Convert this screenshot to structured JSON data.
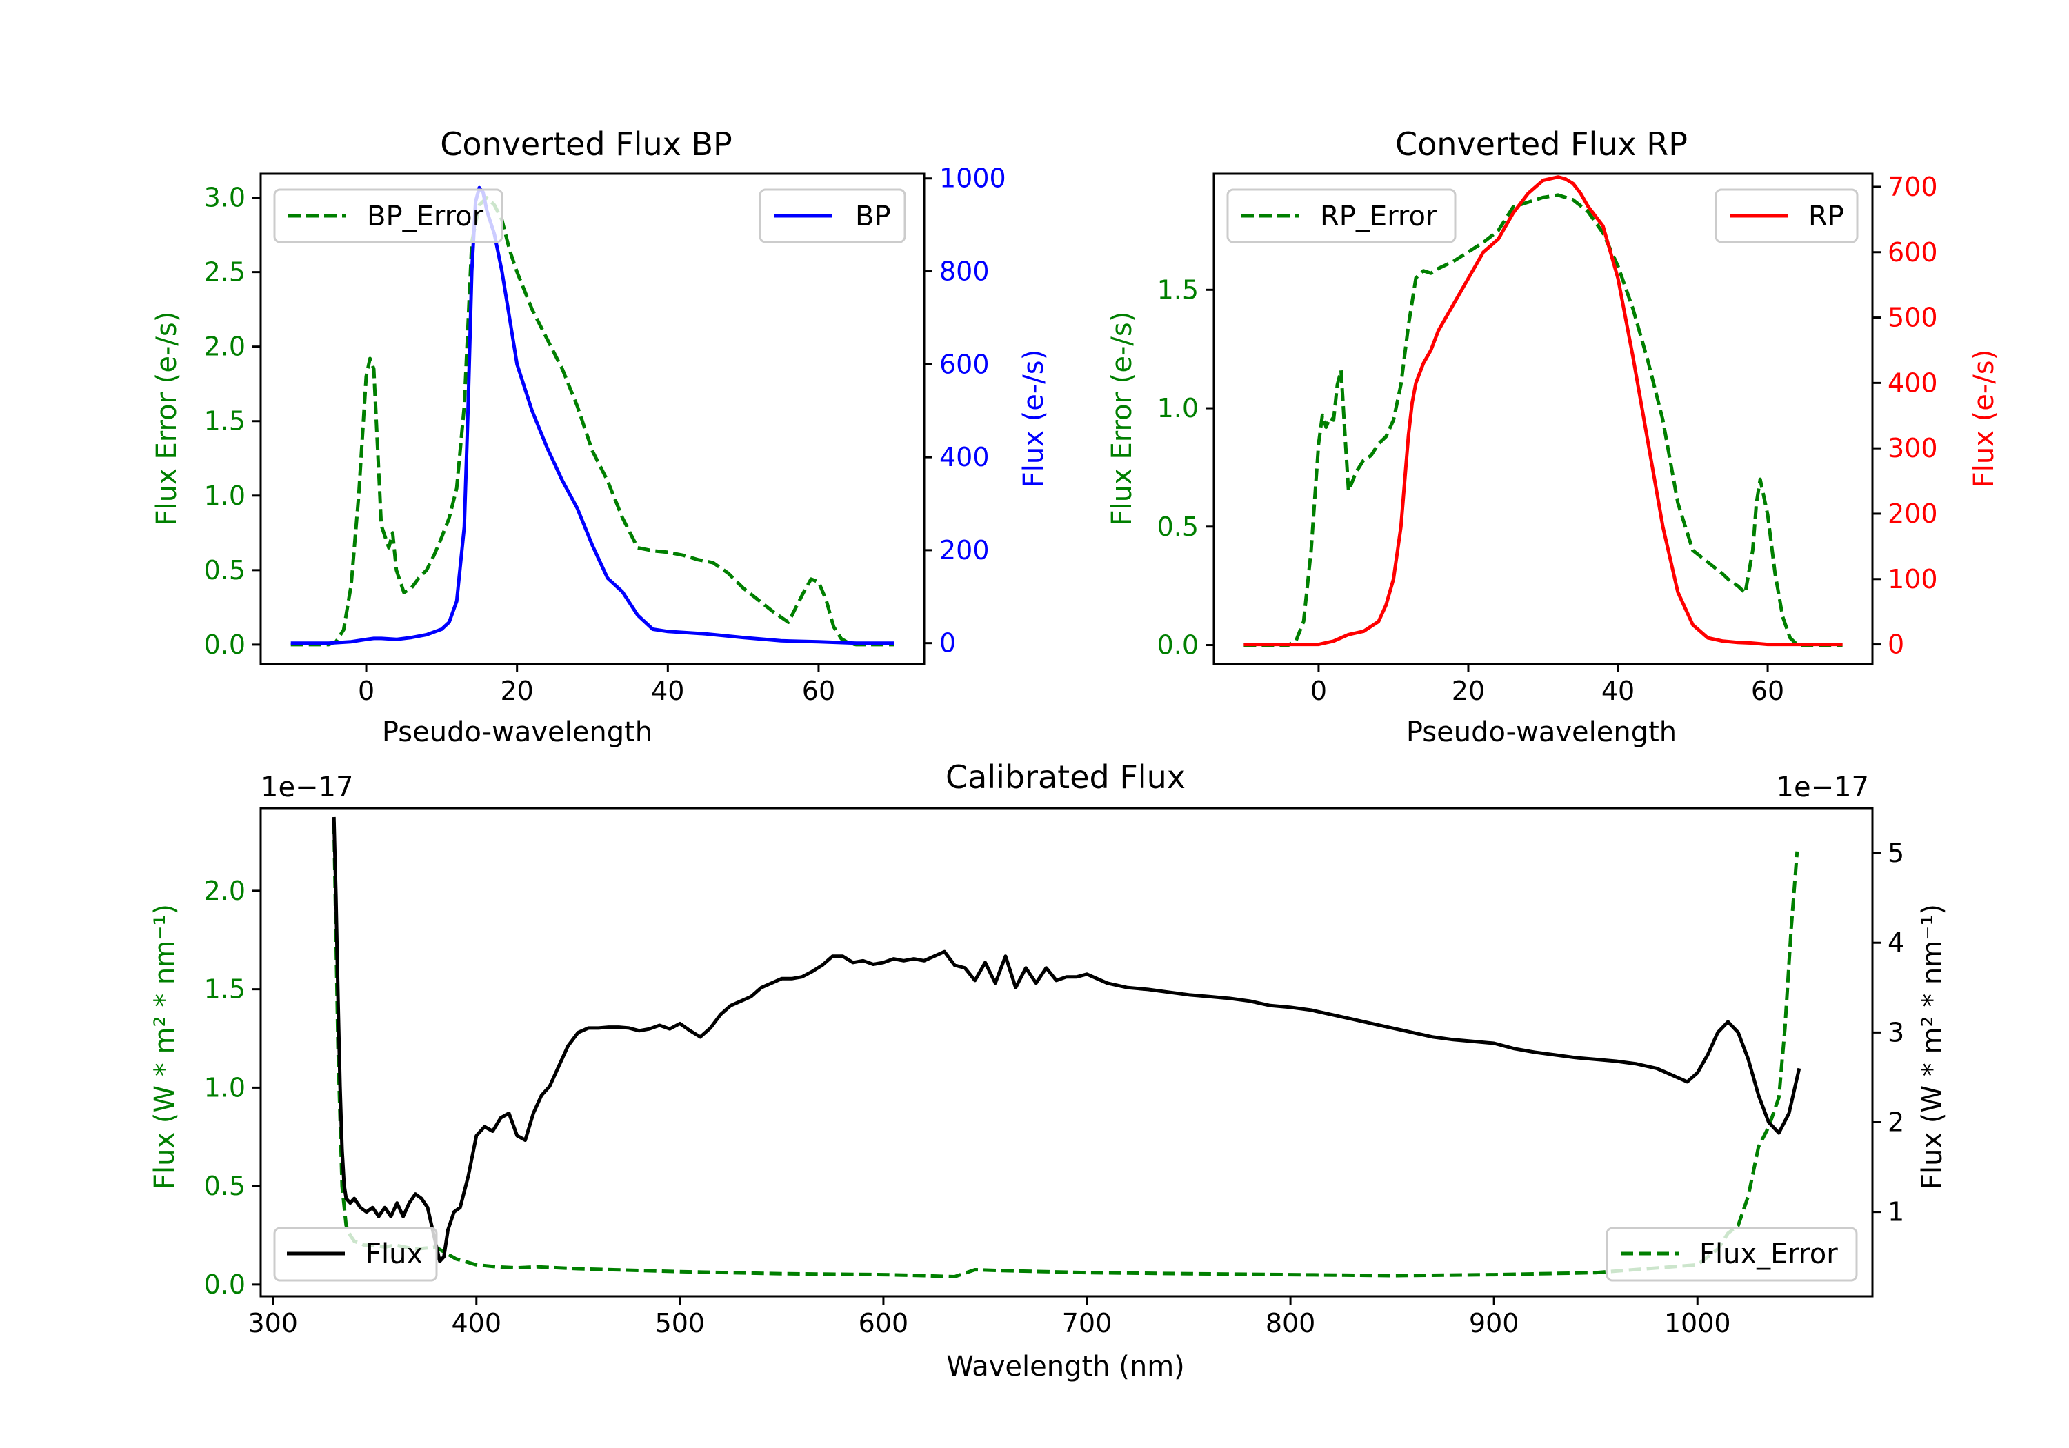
{
  "colors": {
    "error": "#007f00",
    "bp": "#0000ff",
    "rp": "#ff0000",
    "flux": "#000000",
    "axis": "#000000"
  },
  "chart_data": [
    {
      "id": "bp",
      "type": "line",
      "title": "Converted Flux BP",
      "xlabel": "Pseudo-wavelength",
      "ylabel_left": "Flux Error (e-/s)",
      "ylabel_right": "Flux (e-/s)",
      "xlim": [
        -14,
        74
      ],
      "ylim_left": [
        -0.13,
        3.16
      ],
      "ylim_right": [
        -45,
        1010
      ],
      "xticks": [
        0,
        20,
        40,
        60
      ],
      "xtick_labels": [
        "0",
        "20",
        "40",
        "60"
      ],
      "yticks_left": [
        0.0,
        0.5,
        1.0,
        1.5,
        2.0,
        2.5,
        3.0
      ],
      "yticks_left_labels": [
        "0.0",
        "0.5",
        "1.0",
        "1.5",
        "2.0",
        "2.5",
        "3.0"
      ],
      "yticks_right": [
        0,
        200,
        400,
        600,
        800,
        1000
      ],
      "yticks_right_labels": [
        "0",
        "200",
        "400",
        "600",
        "800",
        "1000"
      ],
      "legend_left": "BP_Error",
      "legend_right": "BP",
      "series": [
        {
          "name": "BP_Error",
          "axis": "left",
          "style": "dashed",
          "color_key": "error",
          "x": [
            -10,
            -5,
            -4,
            -3,
            -2,
            -1,
            0,
            0.5,
            1,
            2,
            3,
            3.5,
            4,
            5,
            6,
            7,
            8,
            9,
            10,
            11,
            12,
            13,
            14,
            15,
            16,
            17,
            18,
            19,
            20,
            22,
            24,
            26,
            28,
            30,
            32,
            34,
            36,
            38,
            40,
            42,
            44,
            46,
            48,
            50,
            52,
            54,
            56,
            58,
            59,
            60,
            61,
            62,
            63,
            64,
            65,
            66,
            70
          ],
          "y": [
            0.0,
            0.0,
            0.02,
            0.1,
            0.4,
            1.0,
            1.8,
            1.92,
            1.85,
            0.8,
            0.65,
            0.75,
            0.5,
            0.35,
            0.38,
            0.45,
            0.5,
            0.6,
            0.72,
            0.85,
            1.05,
            1.6,
            2.7,
            2.95,
            3.0,
            2.95,
            2.85,
            2.65,
            2.5,
            2.25,
            2.05,
            1.85,
            1.6,
            1.3,
            1.1,
            0.85,
            0.65,
            0.63,
            0.62,
            0.6,
            0.57,
            0.55,
            0.48,
            0.38,
            0.3,
            0.22,
            0.15,
            0.35,
            0.44,
            0.42,
            0.3,
            0.12,
            0.04,
            0.01,
            0.0,
            0.0,
            0.0
          ]
        },
        {
          "name": "BP",
          "axis": "right",
          "style": "solid",
          "color_key": "bp",
          "x": [
            -10,
            -5,
            -2,
            0,
            1,
            2,
            4,
            6,
            8,
            10,
            11,
            12,
            13,
            13.5,
            14,
            14.5,
            15,
            15.5,
            16,
            17,
            18,
            19,
            20,
            22,
            24,
            26,
            28,
            30,
            32,
            34,
            36,
            38,
            40,
            45,
            50,
            55,
            60,
            65,
            70
          ],
          "y": [
            0,
            0,
            3,
            8,
            10,
            10,
            8,
            12,
            18,
            30,
            45,
            90,
            250,
            500,
            800,
            950,
            980,
            970,
            930,
            880,
            800,
            700,
            600,
            500,
            420,
            350,
            290,
            210,
            140,
            110,
            60,
            30,
            25,
            20,
            12,
            5,
            3,
            0,
            0
          ]
        }
      ]
    },
    {
      "id": "rp",
      "type": "line",
      "title": "Converted Flux RP",
      "xlabel": "Pseudo-wavelength",
      "ylabel_left": "Flux Error (e-/s)",
      "ylabel_right": "Flux (e-/s)",
      "xlim": [
        -14,
        74
      ],
      "ylim_left": [
        -0.08,
        1.99
      ],
      "ylim_right": [
        -30,
        720
      ],
      "xticks": [
        0,
        20,
        40,
        60
      ],
      "xtick_labels": [
        "0",
        "20",
        "40",
        "60"
      ],
      "yticks_left": [
        0.0,
        0.5,
        1.0,
        1.5
      ],
      "yticks_left_labels": [
        "0.0",
        "0.5",
        "1.0",
        "1.5"
      ],
      "yticks_right": [
        0,
        100,
        200,
        300,
        400,
        500,
        600,
        700
      ],
      "yticks_right_labels": [
        "0",
        "100",
        "200",
        "300",
        "400",
        "500",
        "600",
        "700"
      ],
      "legend_left": "RP_Error",
      "legend_right": "RP",
      "series": [
        {
          "name": "RP_Error",
          "axis": "left",
          "style": "dashed",
          "color_key": "error",
          "x": [
            -10,
            -4,
            -3,
            -2,
            -1,
            0,
            0.5,
            1,
            1.5,
            2,
            2.5,
            3,
            3.5,
            4,
            5,
            6,
            7,
            8,
            9,
            10,
            11,
            12,
            13,
            14,
            15,
            16,
            18,
            20,
            22,
            24,
            26,
            28,
            30,
            32,
            34,
            36,
            38,
            40,
            42,
            44,
            46,
            48,
            50,
            52,
            54,
            55,
            56,
            57,
            58,
            58.5,
            59,
            60,
            61,
            62,
            63,
            64,
            70
          ],
          "y": [
            0.0,
            0.0,
            0.02,
            0.1,
            0.4,
            0.85,
            0.97,
            0.92,
            0.96,
            0.95,
            1.1,
            1.16,
            0.9,
            0.65,
            0.73,
            0.78,
            0.8,
            0.85,
            0.88,
            0.95,
            1.1,
            1.35,
            1.55,
            1.58,
            1.57,
            1.59,
            1.62,
            1.66,
            1.7,
            1.75,
            1.85,
            1.87,
            1.89,
            1.9,
            1.88,
            1.83,
            1.74,
            1.6,
            1.42,
            1.2,
            0.95,
            0.6,
            0.4,
            0.35,
            0.3,
            0.27,
            0.25,
            0.22,
            0.4,
            0.6,
            0.7,
            0.55,
            0.3,
            0.12,
            0.03,
            0.0,
            0.0
          ]
        },
        {
          "name": "RP",
          "axis": "right",
          "style": "solid",
          "color_key": "rp",
          "x": [
            -10,
            -5,
            -2,
            0,
            2,
            4,
            6,
            8,
            9,
            10,
            11,
            12,
            12.5,
            13,
            14,
            15,
            16,
            17,
            18,
            20,
            22,
            24,
            26,
            28,
            30,
            32,
            33,
            34,
            35,
            36,
            38,
            40,
            42,
            44,
            46,
            48,
            50,
            52,
            54,
            56,
            58,
            60,
            62,
            65,
            70
          ],
          "y": [
            0,
            0,
            0,
            0,
            5,
            15,
            20,
            35,
            60,
            100,
            180,
            320,
            370,
            400,
            430,
            450,
            480,
            500,
            520,
            560,
            600,
            620,
            660,
            690,
            710,
            715,
            712,
            705,
            690,
            670,
            640,
            560,
            440,
            310,
            180,
            80,
            30,
            10,
            5,
            3,
            2,
            0,
            0,
            0,
            0
          ]
        }
      ]
    },
    {
      "id": "cal",
      "type": "line",
      "title": "Calibrated Flux",
      "xlabel": "Wavelength (nm)",
      "ylabel_left": "Flux (W * m² * nm⁻¹)",
      "ylabel_right": "Flux (W * m² * nm⁻¹)",
      "offset_left": "1e−17",
      "offset_right": "1e−17",
      "xlim": [
        294,
        1086
      ],
      "ylim_left": [
        -0.06,
        2.42
      ],
      "ylim_right": [
        0.06,
        5.5
      ],
      "xticks": [
        300,
        400,
        500,
        600,
        700,
        800,
        900,
        1000
      ],
      "xtick_labels": [
        "300",
        "400",
        "500",
        "600",
        "700",
        "800",
        "900",
        "1000"
      ],
      "yticks_left": [
        0.0,
        0.5,
        1.0,
        1.5,
        2.0
      ],
      "yticks_left_labels": [
        "0.0",
        "0.5",
        "1.0",
        "1.5",
        "2.0"
      ],
      "yticks_right": [
        1,
        2,
        3,
        4,
        5
      ],
      "yticks_right_labels": [
        "1",
        "2",
        "3",
        "4",
        "5"
      ],
      "legend_left": "Flux",
      "legend_right": "Flux_Error",
      "series": [
        {
          "name": "Flux_Error",
          "axis": "left",
          "style": "dashed",
          "color_key": "error",
          "x": [
            330,
            332,
            334,
            336,
            338,
            340,
            345,
            350,
            355,
            360,
            370,
            380,
            390,
            400,
            410,
            420,
            430,
            440,
            450,
            500,
            550,
            600,
            620,
            635,
            645,
            660,
            700,
            750,
            800,
            850,
            900,
            950,
            1000,
            1010,
            1015,
            1020,
            1025,
            1030,
            1035,
            1040,
            1043,
            1046,
            1049
          ],
          "y": [
            2.35,
            1.2,
            0.5,
            0.3,
            0.25,
            0.22,
            0.2,
            0.2,
            0.19,
            0.2,
            0.18,
            0.19,
            0.13,
            0.1,
            0.09,
            0.085,
            0.09,
            0.085,
            0.08,
            0.065,
            0.055,
            0.05,
            0.045,
            0.04,
            0.075,
            0.07,
            0.06,
            0.055,
            0.05,
            0.045,
            0.05,
            0.06,
            0.1,
            0.18,
            0.26,
            0.3,
            0.45,
            0.7,
            0.8,
            0.95,
            1.3,
            1.8,
            2.2
          ]
        },
        {
          "name": "Flux",
          "axis": "right",
          "style": "solid",
          "color_key": "flux",
          "x": [
            330,
            331,
            332,
            333,
            334,
            335,
            336,
            338,
            340,
            343,
            346,
            349,
            352,
            355,
            358,
            361,
            364,
            367,
            370,
            373,
            376,
            379,
            382,
            384,
            386,
            389,
            392,
            396,
            400,
            404,
            408,
            412,
            416,
            420,
            424,
            428,
            432,
            436,
            440,
            445,
            450,
            455,
            460,
            465,
            470,
            475,
            480,
            485,
            490,
            495,
            500,
            505,
            510,
            515,
            520,
            525,
            530,
            535,
            540,
            545,
            550,
            555,
            560,
            565,
            570,
            575,
            580,
            585,
            590,
            595,
            600,
            605,
            610,
            615,
            620,
            625,
            630,
            635,
            640,
            645,
            650,
            655,
            660,
            665,
            670,
            675,
            680,
            685,
            690,
            695,
            700,
            710,
            720,
            730,
            740,
            750,
            760,
            770,
            780,
            790,
            800,
            810,
            820,
            830,
            840,
            850,
            860,
            870,
            880,
            890,
            900,
            910,
            920,
            930,
            940,
            950,
            960,
            970,
            980,
            990,
            995,
            1000,
            1005,
            1010,
            1015,
            1020,
            1025,
            1030,
            1035,
            1040,
            1045,
            1050
          ],
          "y": [
            5.4,
            4.5,
            3.4,
            2.4,
            1.7,
            1.3,
            1.15,
            1.1,
            1.15,
            1.05,
            1.0,
            1.05,
            0.95,
            1.05,
            0.95,
            1.1,
            0.95,
            1.1,
            1.2,
            1.15,
            1.05,
            0.75,
            0.45,
            0.5,
            0.8,
            1.0,
            1.05,
            1.4,
            1.85,
            1.95,
            1.9,
            2.05,
            2.1,
            1.85,
            1.8,
            2.1,
            2.3,
            2.4,
            2.6,
            2.85,
            3.0,
            3.05,
            3.05,
            3.06,
            3.06,
            3.05,
            3.02,
            3.04,
            3.08,
            3.04,
            3.1,
            3.02,
            2.95,
            3.05,
            3.2,
            3.3,
            3.35,
            3.4,
            3.5,
            3.55,
            3.6,
            3.6,
            3.62,
            3.68,
            3.75,
            3.85,
            3.85,
            3.78,
            3.8,
            3.76,
            3.78,
            3.82,
            3.8,
            3.82,
            3.8,
            3.85,
            3.9,
            3.75,
            3.72,
            3.58,
            3.78,
            3.55,
            3.85,
            3.5,
            3.72,
            3.55,
            3.72,
            3.58,
            3.62,
            3.62,
            3.65,
            3.55,
            3.5,
            3.48,
            3.45,
            3.42,
            3.4,
            3.38,
            3.35,
            3.3,
            3.28,
            3.25,
            3.2,
            3.15,
            3.1,
            3.05,
            3.0,
            2.95,
            2.92,
            2.9,
            2.88,
            2.82,
            2.78,
            2.75,
            2.72,
            2.7,
            2.68,
            2.65,
            2.6,
            2.5,
            2.45,
            2.55,
            2.75,
            3.0,
            3.12,
            3.0,
            2.7,
            2.3,
            2.0,
            1.88,
            2.1,
            2.6
          ]
        }
      ]
    }
  ]
}
